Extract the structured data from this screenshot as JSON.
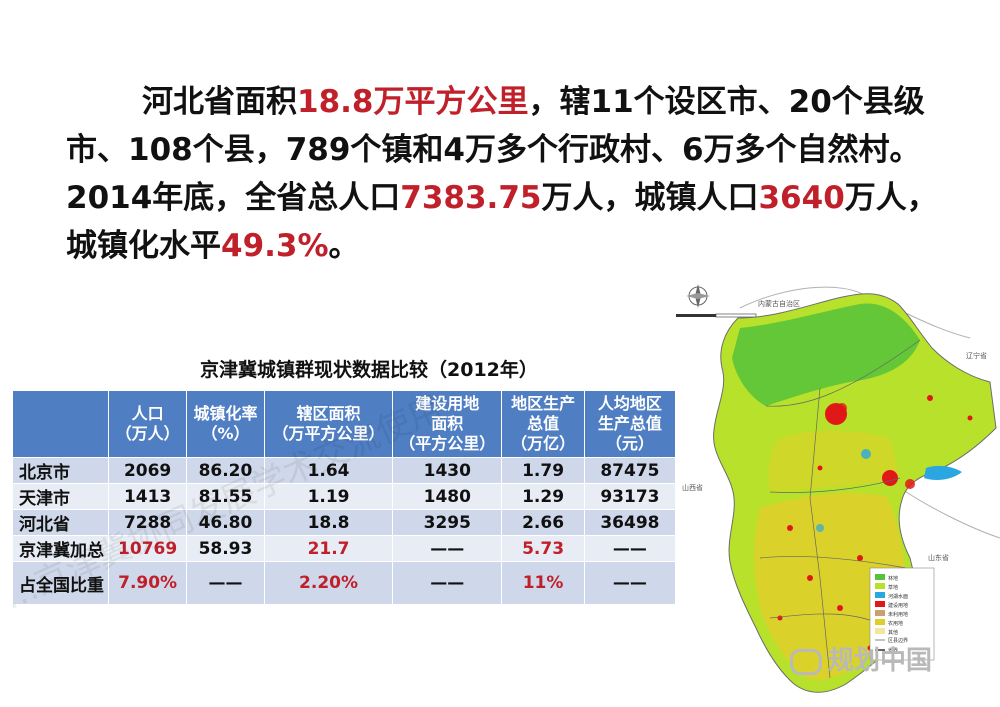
{
  "headline": {
    "p1a": "河北省面积",
    "area": "18.8万平方公里",
    "p1b": "，辖11个设区市、20个县级市、108个县，789个镇和4万多个行政村、6万多个自然村。2014年底，全省总人口",
    "pop": "7383.75",
    "p2": "万人，城镇人口",
    "urbanpop": "3640",
    "p3": "万人，城镇化水平",
    "rate": "49.3%",
    "p4": "。"
  },
  "table": {
    "title": "京津冀城镇群现状数据比较（2012年）",
    "headers": [
      {
        "l1": "人口",
        "l2": "（万人）",
        "l3": ""
      },
      {
        "l1": "城镇化率",
        "l2": "（%）",
        "l3": ""
      },
      {
        "l1": "辖区面积",
        "l2": "（万平方公里）",
        "l3": ""
      },
      {
        "l1": "建设用地",
        "l2": "面积",
        "l3": "（平方公里）"
      },
      {
        "l1": "地区生产",
        "l2": "总值",
        "l3": "（万亿）"
      },
      {
        "l1": "人均地区",
        "l2": "生产总值",
        "l3": "（元）"
      }
    ],
    "rows": [
      {
        "name": "北京市",
        "c": [
          "2069",
          "86.20",
          "1.64",
          "1430",
          "1.79",
          "87475"
        ]
      },
      {
        "name": "天津市",
        "c": [
          "1413",
          "81.55",
          "1.19",
          "1480",
          "1.29",
          "93173"
        ]
      },
      {
        "name": "河北省",
        "c": [
          "7288",
          "46.80",
          "18.8",
          "3295",
          "2.66",
          "36498"
        ]
      },
      {
        "name": "京津冀加总",
        "c": [
          "10769",
          "58.93",
          "21.7",
          "——",
          "5.73",
          "——"
        ]
      },
      {
        "name": "占全国比重",
        "c": [
          "7.90%",
          "——",
          "2.20%",
          "——",
          "11%",
          "——"
        ]
      }
    ]
  },
  "map": {
    "labels": {
      "inner_mongolia": "内蒙古自治区",
      "liaoning": "辽宁省",
      "shanxi": "山西省",
      "shandong": "山东省"
    },
    "legend": [
      "林地",
      "草地",
      "河湖水面",
      "建设用地",
      "未利用地",
      "农用地",
      "其他",
      "区县边界",
      "省界"
    ],
    "colors": {
      "forest": "#56c23a",
      "grass": "#b7e12a",
      "farm": "#e0cf2a",
      "red": "#e01818",
      "water": "#2aa7e0"
    }
  },
  "watermark": "…京津冀协同发展学术交流使用",
  "logo": "规划中国"
}
